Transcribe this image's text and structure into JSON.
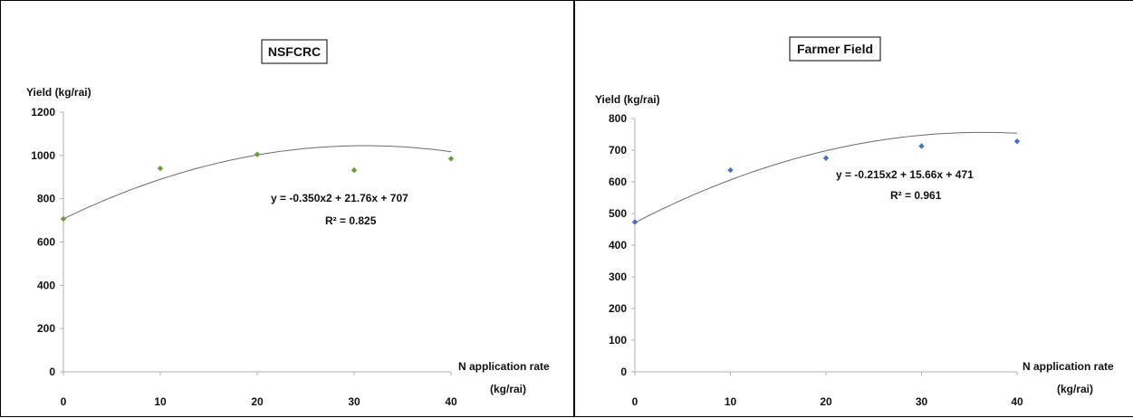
{
  "chart_data": [
    {
      "type": "scatter",
      "title": "NSFCRC",
      "ylabel": "Yield (kg/rai)",
      "xlabel": "N application rate",
      "xlabel_unit": "(kg/rai)",
      "x_ticks": [
        "0",
        "10",
        "20",
        "30",
        "40"
      ],
      "y_ticks": [
        "0",
        "200",
        "400",
        "600",
        "800",
        "1000",
        "1200"
      ],
      "xlim": [
        0,
        40
      ],
      "ylim": [
        0,
        1200
      ],
      "grid": false,
      "marker_color": "#6e9a3c",
      "series": [
        {
          "x": [
            0,
            10,
            20,
            30,
            40
          ],
          "y": [
            707,
            940,
            1005,
            932,
            985
          ]
        }
      ],
      "trendline": {
        "kind": "polynomial",
        "a": -0.35,
        "b": 21.76,
        "c": 707
      },
      "equation": "y = -0.350x2 + 21.76x + 707",
      "r_squared": "R² = 0.825"
    },
    {
      "type": "scatter",
      "title": "Farmer Field",
      "ylabel": "Yield (kg/rai)",
      "xlabel": "N application rate",
      "xlabel_unit": "(kg/rai)",
      "x_ticks": [
        "0",
        "10",
        "20",
        "30",
        "40"
      ],
      "y_ticks": [
        "0",
        "100",
        "200",
        "300",
        "400",
        "500",
        "600",
        "700",
        "800"
      ],
      "xlim": [
        0,
        40
      ],
      "ylim": [
        0,
        800
      ],
      "grid": false,
      "marker_color": "#4472c4",
      "series": [
        {
          "x": [
            0,
            10,
            20,
            30,
            40
          ],
          "y": [
            473,
            637,
            675,
            713,
            728
          ]
        }
      ],
      "trendline": {
        "kind": "polynomial",
        "a": -0.215,
        "b": 15.66,
        "c": 471
      },
      "equation": "y = -0.215x2 + 15.66x + 471",
      "r_squared": "R² = 0.961"
    }
  ]
}
